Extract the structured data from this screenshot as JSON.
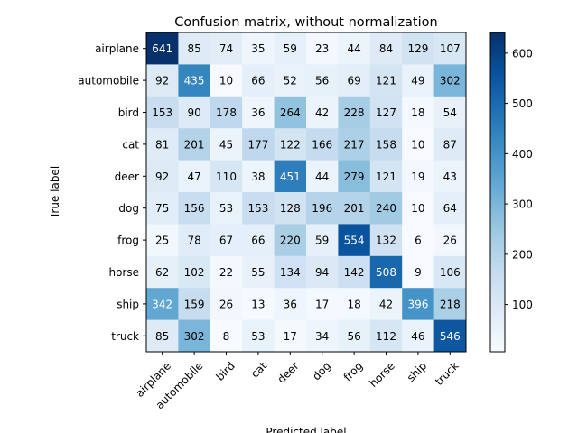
{
  "chart_data": {
    "type": "heatmap",
    "title": "Confusion matrix, without normalization",
    "xlabel": "Predicted label",
    "ylabel": "True label",
    "x_categories": [
      "airplane",
      "automobile",
      "bird",
      "cat",
      "deer",
      "dog",
      "frog",
      "horse",
      "ship",
      "truck"
    ],
    "y_categories": [
      "airplane",
      "automobile",
      "bird",
      "cat",
      "deer",
      "dog",
      "frog",
      "horse",
      "ship",
      "truck"
    ],
    "values": [
      [
        641,
        85,
        74,
        35,
        59,
        23,
        44,
        84,
        129,
        107
      ],
      [
        92,
        435,
        10,
        66,
        52,
        56,
        69,
        121,
        49,
        302
      ],
      [
        153,
        90,
        178,
        36,
        264,
        42,
        228,
        127,
        18,
        54
      ],
      [
        81,
        201,
        45,
        177,
        122,
        166,
        217,
        158,
        10,
        87
      ],
      [
        92,
        47,
        110,
        38,
        451,
        44,
        279,
        121,
        19,
        43
      ],
      [
        75,
        156,
        53,
        153,
        128,
        196,
        201,
        240,
        10,
        64
      ],
      [
        25,
        78,
        67,
        66,
        220,
        59,
        554,
        132,
        6,
        26
      ],
      [
        62,
        102,
        22,
        55,
        134,
        94,
        142,
        508,
        9,
        106
      ],
      [
        342,
        159,
        26,
        13,
        36,
        17,
        18,
        42,
        396,
        218
      ],
      [
        85,
        302,
        8,
        53,
        17,
        34,
        56,
        112,
        46,
        546
      ]
    ],
    "colormap": "Blues",
    "colorbar_ticks": [
      100,
      200,
      300,
      400,
      500,
      600
    ],
    "colorbar_range": [
      6,
      641
    ],
    "text_color_light": "#ffffff",
    "text_color_dark": "#000000"
  }
}
